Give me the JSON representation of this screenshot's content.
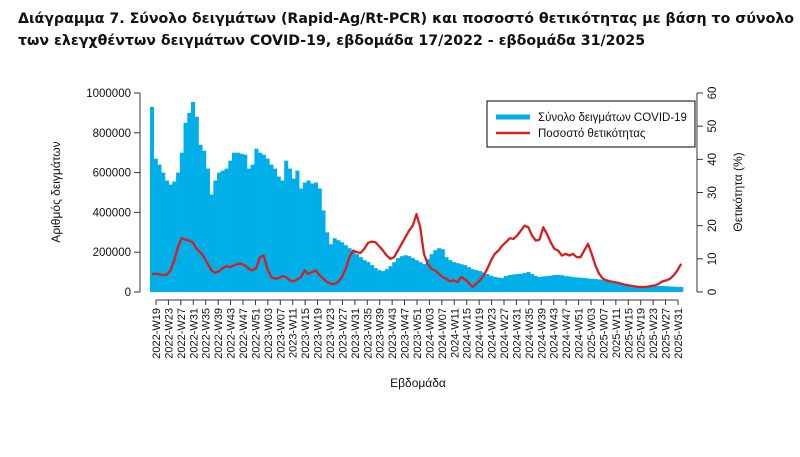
{
  "chart_data": {
    "type": "bar+line",
    "title_lines": [
      "Διάγραμμα 7. Σύνολο δειγμάτων (Rapid-Ag/Rt-PCR) και ποσοστό θετικότητας με βάση το σύνολο",
      "των ελεγχθέντων δειγμάτων COVID-19, εβδομάδα 17/2022 - εβδομάδα 31/2025"
    ],
    "xlabel": "Εβδομάδα",
    "ylabel_left": "Αριθμός δειγμάτων",
    "ylabel_right": "Θετικότητα (%)",
    "left_ylim": [
      0,
      1000000
    ],
    "left_ticks": [
      "0",
      "200000",
      "400000",
      "600000",
      "800000",
      "1000000"
    ],
    "right_ylim": [
      0,
      60
    ],
    "right_ticks": [
      "0",
      "10",
      "20",
      "30",
      "40",
      "50",
      "60"
    ],
    "x_tick_labels": [
      "2022-W19",
      "2022-W23",
      "2022-W27",
      "2022-W31",
      "2022-W35",
      "2022-W39",
      "2022-W43",
      "2022-W47",
      "2022-W51",
      "2023-W03",
      "2023-W07",
      "2023-W11",
      "2023-W15",
      "2023-W19",
      "2023-W23",
      "2023-W27",
      "2023-W31",
      "2023-W35",
      "2023-W39",
      "2023-W43",
      "2023-W47",
      "2023-W51",
      "2024-W03",
      "2024-W07",
      "2024-W11",
      "2024-W15",
      "2024-W19",
      "2024-W23",
      "2024-W27",
      "2024-W31",
      "2024-W35",
      "2024-W39",
      "2024-W43",
      "2024-W47",
      "2024-W51",
      "2025-W03",
      "2025-W07",
      "2025-W11",
      "2025-W15",
      "2025-W19",
      "2025-W23",
      "2025-W27",
      "2025-W31"
    ],
    "legend": {
      "position": "top-right",
      "entries": [
        "Σύνολο δειγμάτων COVID-19",
        "Ποσοστό θετικότητας"
      ]
    },
    "colors": {
      "bars": "#00afe8",
      "line": "#d71f1f"
    },
    "series": [
      {
        "name": "Σύνολο δειγμάτων COVID-19",
        "kind": "bar",
        "axis": "left",
        "values": [
          930000,
          670000,
          640000,
          600000,
          560000,
          540000,
          555000,
          600000,
          700000,
          850000,
          900000,
          955000,
          880000,
          740000,
          710000,
          620000,
          490000,
          560000,
          600000,
          610000,
          620000,
          660000,
          700000,
          700000,
          695000,
          690000,
          620000,
          640000,
          720000,
          700000,
          690000,
          670000,
          640000,
          620000,
          580000,
          560000,
          660000,
          620000,
          570000,
          610000,
          520000,
          550000,
          560000,
          545000,
          550000,
          520000,
          410000,
          300000,
          240000,
          270000,
          260000,
          250000,
          235000,
          220000,
          205000,
          190000,
          175000,
          160000,
          150000,
          135000,
          120000,
          110000,
          105000,
          115000,
          130000,
          150000,
          170000,
          180000,
          185000,
          180000,
          170000,
          160000,
          150000,
          140000,
          165000,
          190000,
          210000,
          220000,
          215000,
          175000,
          160000,
          150000,
          145000,
          140000,
          135000,
          125000,
          115000,
          110000,
          105000,
          98000,
          90000,
          82000,
          76000,
          72000,
          70000,
          80000,
          85000,
          88000,
          90000,
          92000,
          95000,
          100000,
          90000,
          80000,
          75000,
          78000,
          80000,
          82000,
          85000,
          86000,
          84000,
          80000,
          78000,
          75000,
          73000,
          72000,
          70000,
          68000,
          66000,
          65000,
          63000,
          60000,
          56000,
          50000,
          45000,
          42000,
          40000,
          38000,
          36000,
          34000,
          32000,
          30000,
          29000,
          28000,
          29000,
          30000,
          31000,
          30000,
          29000,
          28000,
          27000,
          26000,
          25000
        ]
      },
      {
        "name": "Ποσοστό θετικότητας",
        "kind": "line",
        "axis": "right",
        "values": [
          5.4,
          5.5,
          5.3,
          5.1,
          5.2,
          6.5,
          9.5,
          13.5,
          16.2,
          15.8,
          15.5,
          15.0,
          13.0,
          12.0,
          10.5,
          8.5,
          6.5,
          5.8,
          6.2,
          7.2,
          7.8,
          7.5,
          8.0,
          8.5,
          8.5,
          8.0,
          7.0,
          6.5,
          7.2,
          10.5,
          11.0,
          7.0,
          4.5,
          4.0,
          4.2,
          4.8,
          4.5,
          3.5,
          3.2,
          3.8,
          4.5,
          6.5,
          5.5,
          6.0,
          6.5,
          5.0,
          4.0,
          3.0,
          2.5,
          2.4,
          3.0,
          4.5,
          7.0,
          10.5,
          12.5,
          12.0,
          11.8,
          13.0,
          14.8,
          15.2,
          15.0,
          13.8,
          12.5,
          11.0,
          10.0,
          10.5,
          12.5,
          14.5,
          16.5,
          18.5,
          20.0,
          23.5,
          19.5,
          11.5,
          8.5,
          7.0,
          6.5,
          5.5,
          4.5,
          4.0,
          3.2,
          3.5,
          3.0,
          4.5,
          3.8,
          2.8,
          1.5,
          2.5,
          3.5,
          5.0,
          7.0,
          9.5,
          11.5,
          12.5,
          14.0,
          15.0,
          16.2,
          16.0,
          17.0,
          18.5,
          20.0,
          19.5,
          17.0,
          15.5,
          15.8,
          19.5,
          17.5,
          15.0,
          13.0,
          12.5,
          11.0,
          11.5,
          11.0,
          11.5,
          10.5,
          10.5,
          12.5,
          14.5,
          11.5,
          8.0,
          5.5,
          4.0,
          3.5,
          3.2,
          3.0,
          2.8,
          2.5,
          2.2,
          2.0,
          1.8,
          1.6,
          1.5,
          1.5,
          1.6,
          1.8,
          2.0,
          2.5,
          3.2,
          3.5,
          4.0,
          5.0,
          6.5,
          8.5
        ]
      }
    ]
  }
}
